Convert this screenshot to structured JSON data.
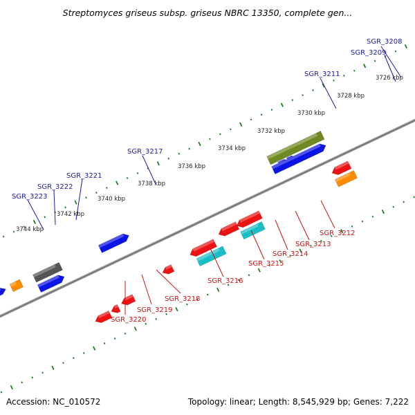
{
  "title": "Streptomyces griseus subsp. griseus NBRC 13350, complete gen...",
  "footer": {
    "accession": "Accession: NC_010572",
    "summary": "Topology: linear; Length: 8,545,929 bp; Genes: 7,222"
  },
  "ticks": [
    "3726 kbp",
    "3728 kbp",
    "3730 kbp",
    "3732 kbp",
    "3734 kbp",
    "3736 kbp",
    "3738 kbp",
    "3740 kbp",
    "3742 kbp",
    "3744 kbp"
  ],
  "genes_forward": [
    "SGR_3208",
    "SGR_3209",
    "SGR_3211",
    "SGR_3217",
    "SGR_3221",
    "SGR_3222",
    "SGR_3223"
  ],
  "genes_reverse": [
    "SGR_3212",
    "SGR_3213",
    "SGR_3214",
    "SGR_3215",
    "SGR_3216",
    "SGR_3218",
    "SGR_3219",
    "SGR_3220"
  ],
  "colors": {
    "forward_label": "#1a1aa6",
    "reverse_label": "#cc1111",
    "forward_gene": "#0a14e6",
    "reverse_gene": "#ee1111",
    "dots": "#1f7a1f",
    "backbone": "#8a8a8a"
  }
}
